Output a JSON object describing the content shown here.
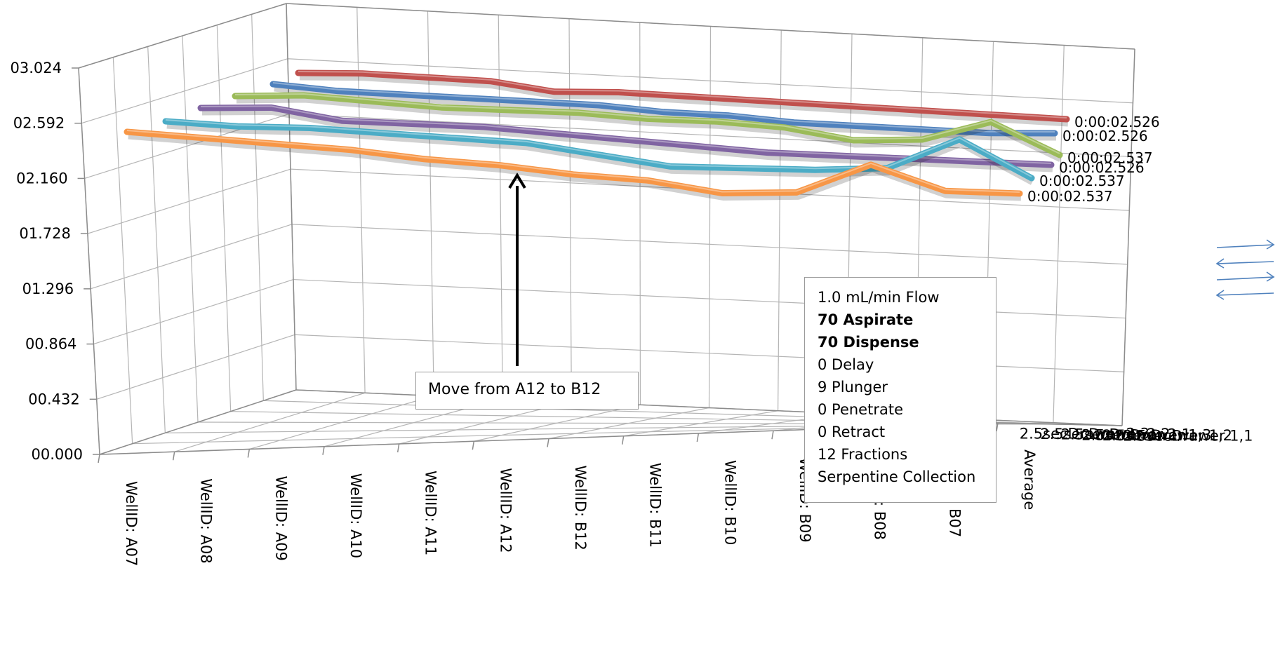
{
  "chart_data": {
    "type": "line",
    "chart_style": "3d-line",
    "categories": [
      "WellID: A07",
      "WellID: A08",
      "WellID: A09",
      "WellID: A10",
      "WellID: A11",
      "WellID: A12",
      "WellID: B12",
      "WellID: B11",
      "WellID: B10",
      "WellID: B09",
      "WellID: B08",
      "WellID: B07",
      "Average"
    ],
    "yticks": [
      "00.000",
      "00.432",
      "00.864",
      "01.296",
      "01.728",
      "02.160",
      "02.592",
      "03.024"
    ],
    "ylim": [
      0,
      3.024
    ],
    "grid": true,
    "legend": "none",
    "series": [
      {
        "name": "2.5secDrawer 2,3",
        "color": "#f79646",
        "end_label": "0:00:02.537",
        "values": [
          2.78,
          2.76,
          2.74,
          2.72,
          2.69,
          2.67,
          2.64,
          2.62,
          2.58,
          2.58,
          2.66,
          2.58,
          2.57
        ]
      },
      {
        "name": "2.5secDrawer 2,2",
        "color": "#4bacc6",
        "end_label": "0:00:02.537",
        "values": [
          2.81,
          2.79,
          2.78,
          2.76,
          2.74,
          2.72,
          2.68,
          2.64,
          2.63,
          2.62,
          2.62,
          2.7,
          2.58
        ]
      },
      {
        "name": "2.5secDrawer 2,1",
        "color": "#8064a2",
        "end_label": "0:00:02.526",
        "values": [
          2.84,
          2.84,
          2.8,
          2.79,
          2.78,
          2.76,
          2.74,
          2.72,
          2.7,
          2.69,
          2.68,
          2.67,
          2.66
        ]
      },
      {
        "name": "2.5secDrawer 1,3",
        "color": "#9bbb59",
        "end_label": "0:00:02.537",
        "values": [
          2.86,
          2.86,
          2.84,
          2.82,
          2.81,
          2.8,
          2.78,
          2.77,
          2.75,
          2.71,
          2.71,
          2.76,
          2.66
        ]
      },
      {
        "name": "2.5secDrawer 1,2",
        "color": "#4f81bd",
        "end_label": "0:00:02.526",
        "values": [
          2.9,
          2.88,
          2.87,
          2.86,
          2.85,
          2.84,
          2.82,
          2.81,
          2.79,
          2.78,
          2.77,
          2.76,
          2.76
        ]
      },
      {
        "name": "2.5secDrawer 1,1",
        "color": "#c0504d",
        "end_label": "0:00:02.526",
        "values": [
          2.91,
          2.91,
          2.9,
          2.89,
          2.86,
          2.86,
          2.85,
          2.84,
          2.83,
          2.82,
          2.81,
          2.8,
          2.79
        ]
      }
    ],
    "depth_labels": [
      "2.5secDrawer 1,1",
      "2.5secDrawer 1,2",
      "2.5secDrawer 1,3",
      "2.5secDrawer 2,1",
      "2.5secDrawer 2,2",
      "2.5secDrawer 2,3"
    ],
    "annotations": {
      "move_text": "Move from A12 to B12",
      "settings": [
        {
          "text": "1.0 mL/min Flow",
          "bold": false
        },
        {
          "text": "70 Aspirate",
          "bold": true
        },
        {
          "text": "70 Dispense",
          "bold": true
        },
        {
          "text": "0 Delay",
          "bold": false
        },
        {
          "text": "9 Plunger",
          "bold": false
        },
        {
          "text": "0 Penetrate",
          "bold": false
        },
        {
          "text": "0 Retract",
          "bold": false
        },
        {
          "text": "12 Fractions",
          "bold": false
        },
        {
          "text": "Serpentine Collection",
          "bold": false
        }
      ]
    },
    "arrow_icon_color": "#4f81bd"
  }
}
